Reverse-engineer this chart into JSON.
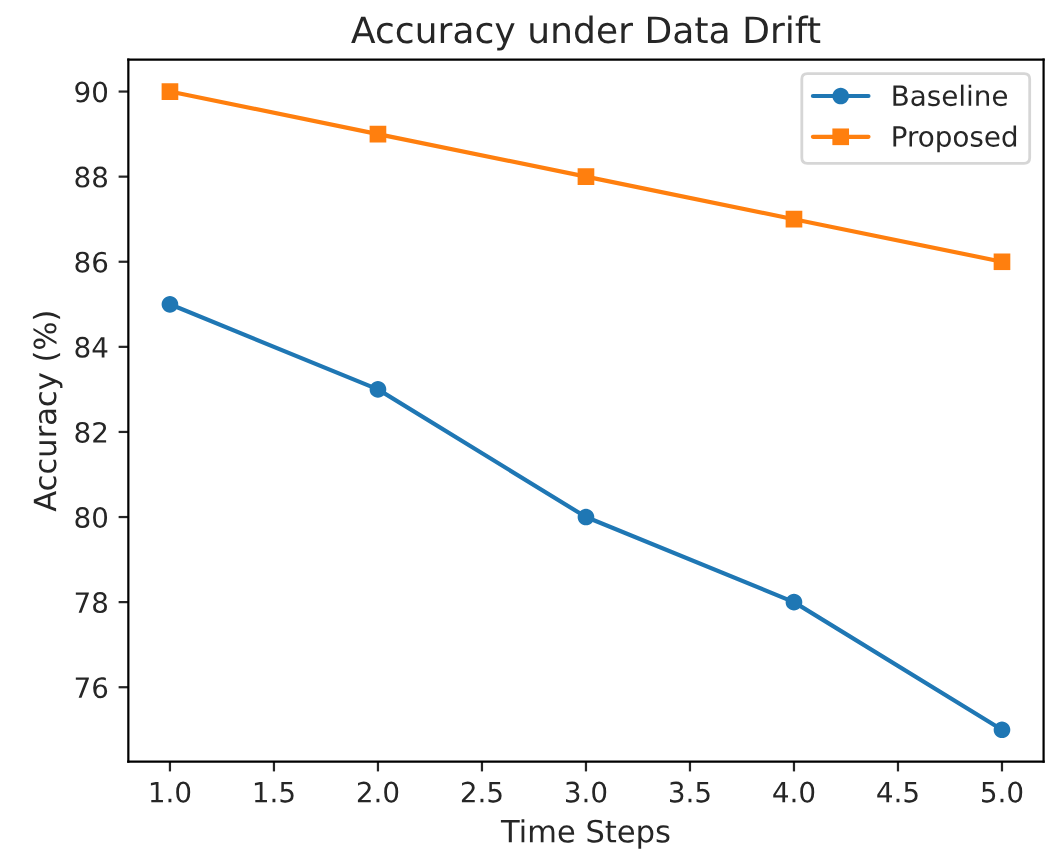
{
  "chart_data": {
    "type": "line",
    "title": "Accuracy under Data Drift",
    "xlabel": "Time Steps",
    "ylabel": "Accuracy (%)",
    "x": [
      1,
      2,
      3,
      4,
      5
    ],
    "series": [
      {
        "name": "Baseline",
        "color": "#1f77b4",
        "marker": "circle",
        "values": [
          85,
          83,
          80,
          78,
          75
        ]
      },
      {
        "name": "Proposed",
        "color": "#ff7f0e",
        "marker": "square",
        "values": [
          90,
          89,
          88,
          87,
          86
        ]
      }
    ],
    "xlim": [
      0.8,
      5.2
    ],
    "xticks": [
      {
        "value": 1,
        "label": "1.0"
      },
      {
        "value": 1.5,
        "label": "1.5"
      },
      {
        "value": 2,
        "label": "2.0"
      },
      {
        "value": 2.5,
        "label": "2.5"
      },
      {
        "value": 3,
        "label": "3.0"
      },
      {
        "value": 3.5,
        "label": "3.5"
      },
      {
        "value": 4,
        "label": "4.0"
      },
      {
        "value": 4.5,
        "label": "4.5"
      },
      {
        "value": 5,
        "label": "5.0"
      }
    ],
    "ylim": [
      74.25,
      90.75
    ],
    "yticks": [
      76,
      78,
      80,
      82,
      84,
      86,
      88,
      90
    ],
    "grid": false,
    "legend": "top right",
    "line_style": "solid"
  }
}
